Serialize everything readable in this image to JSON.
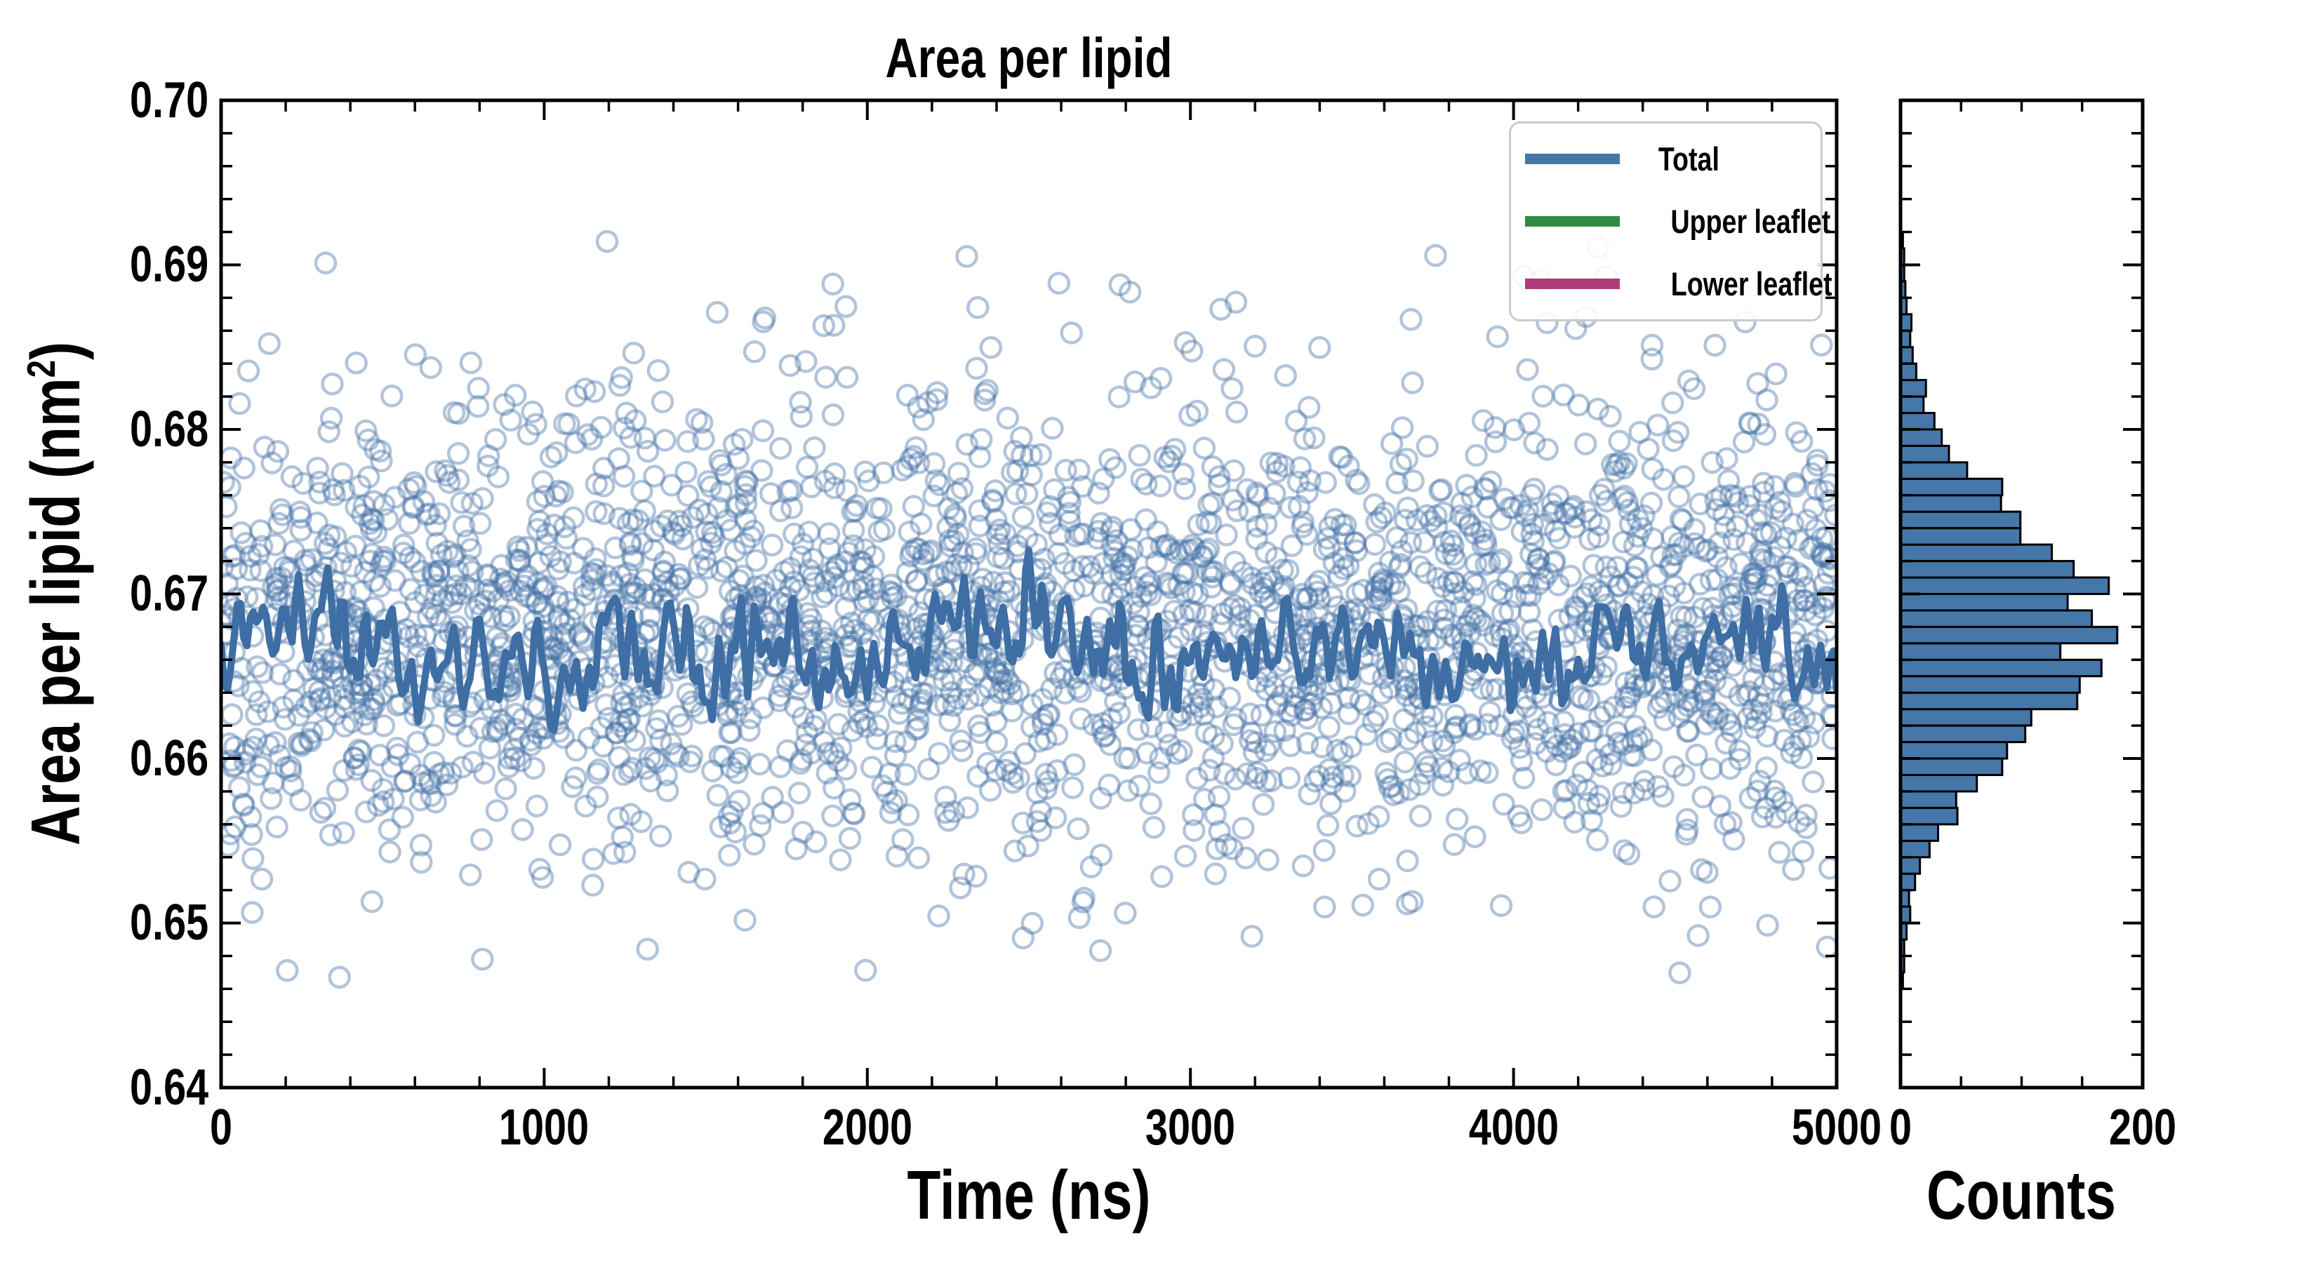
{
  "title": "Area per lipid",
  "main_plot": {
    "xlabel": "Time (ns)",
    "ylabel_pre": "Area per lipid (nm",
    "ylabel_sup": "2",
    "ylabel_post": ")",
    "xticks": [
      "0",
      "1000",
      "2000",
      "3000",
      "4000",
      "5000"
    ],
    "yticks": [
      "0.70",
      "0.69",
      "0.68",
      "0.67",
      "0.66",
      "0.65",
      "0.64"
    ]
  },
  "hist_plot": {
    "xlabel": "Counts",
    "xticks": [
      "0",
      "200"
    ]
  },
  "legend": {
    "items": [
      {
        "label": "Total",
        "color": "#4577a9"
      },
      {
        "label": "Upper leaflet",
        "color": "#2f8b41"
      },
      {
        "label": "Lower leaflet",
        "color": "#b03b79"
      }
    ]
  },
  "chart_data": {
    "type": "line",
    "title": "Area per lipid",
    "panels": [
      {
        "name": "timeseries",
        "type": "line+scatter",
        "xlabel": "Time (ns)",
        "ylabel": "Area per lipid (nm^2)",
        "xlim": [
          0,
          5000
        ],
        "ylim": [
          0.64,
          0.7
        ],
        "xticks": [
          0,
          1000,
          2000,
          3000,
          4000,
          5000
        ],
        "yticks": [
          0.64,
          0.65,
          0.66,
          0.67,
          0.68,
          0.69,
          0.7
        ],
        "x_minor_step": 200,
        "y_minor_step": 0.002,
        "grid": false,
        "legend_position": "upper right",
        "series": [
          {
            "name": "Total",
            "type": "line",
            "color": "#3e6ea3",
            "mean": 0.6665,
            "approx_std": 0.0026,
            "y_range": [
              0.66,
              0.676
            ],
            "x_start": 0,
            "x_end": 5000,
            "n_points": 501
          },
          {
            "name": "Upper leaflet",
            "type": "line",
            "color": "#2f8b41",
            "note": "coincides with Total, hidden beneath it"
          },
          {
            "name": "Lower leaflet",
            "type": "line",
            "color": "#b03b79",
            "note": "coincides with Total, hidden beneath it"
          },
          {
            "name": "per-frame samples",
            "type": "scatter",
            "marker": "open-circle",
            "color": "rgba(70,115,168,0.42)",
            "n_points": 2776,
            "y_mean": 0.6665,
            "y_min": 0.646,
            "y_max": 0.692
          }
        ]
      },
      {
        "name": "histogram",
        "type": "bar",
        "orientation": "horizontal",
        "xlabel": "Counts",
        "xlim": [
          0,
          200
        ],
        "xticks": [
          0,
          200
        ],
        "x_minor_ticks": [
          50,
          100,
          150
        ],
        "ylim": [
          0.64,
          0.7
        ],
        "bar_color": "#4577a9",
        "bar_edge_color": "#000000",
        "bin_start": 0.646,
        "bin_width": 0.001,
        "counts": [
          2,
          3,
          3,
          5,
          8,
          7,
          12,
          16,
          24,
          31,
          47,
          46,
          63,
          84,
          88,
          103,
          108,
          146,
          148,
          166,
          132,
          179,
          158,
          138,
          172,
          143,
          125,
          99,
          99,
          83,
          84,
          55,
          40,
          34,
          28,
          19,
          21,
          13,
          10,
          8,
          9,
          5,
          4,
          3,
          3,
          2
        ]
      }
    ]
  }
}
